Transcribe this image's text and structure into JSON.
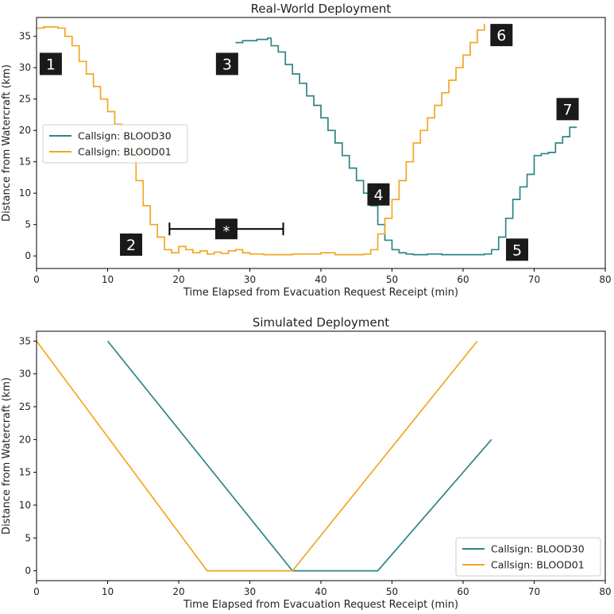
{
  "colors": {
    "blood30": "#2e8486",
    "blood01": "#f2a623"
  },
  "chart_data": [
    {
      "type": "line",
      "title": "Real-World Deployment",
      "xlabel": "Time Elapsed from Evacuation Request Receipt (min)",
      "ylabel": "Distance from Watercraft (km)",
      "xlim": [
        0,
        80
      ],
      "ylim": [
        -2,
        38
      ],
      "xticks": [
        0,
        10,
        20,
        30,
        40,
        50,
        60,
        70,
        80
      ],
      "yticks": [
        0,
        5,
        10,
        15,
        20,
        25,
        30,
        35
      ],
      "grid": false,
      "legend": "center-left",
      "series": [
        {
          "name": "Callsign: BLOOD30",
          "label": "Callsign: BLOOD30",
          "color": "#2e8486",
          "step": true,
          "x": [
            28,
            29,
            31,
            32.5,
            33,
            34,
            35,
            36,
            37,
            38,
            39,
            40,
            41,
            42,
            43,
            44,
            45,
            46,
            47,
            48,
            49,
            50,
            51,
            52,
            53,
            55,
            57,
            59,
            61,
            63,
            64,
            65,
            66,
            67,
            68,
            69,
            70,
            71,
            72,
            73,
            74,
            75,
            76
          ],
          "y": [
            34,
            34.3,
            34.5,
            34.7,
            33.5,
            32.5,
            30.5,
            29,
            27.5,
            25.5,
            24,
            22,
            20,
            18,
            16,
            14,
            12,
            10,
            8,
            5,
            2.5,
            1,
            0.5,
            0.3,
            0.2,
            0.3,
            0.2,
            0.2,
            0.2,
            0.3,
            1,
            3,
            6,
            9,
            11,
            13,
            16,
            16.3,
            16.5,
            18,
            19,
            20.5,
            20.5
          ]
        },
        {
          "name": "Callsign: BLOOD01",
          "label": "Callsign: BLOOD01",
          "color": "#f2a623",
          "step": true,
          "x": [
            0,
            1,
            3,
            4,
            5,
            6,
            7,
            8,
            9,
            10,
            11,
            12,
            13,
            14,
            15,
            16,
            17,
            18,
            19,
            20,
            21,
            22,
            23,
            24,
            25,
            26,
            27,
            28,
            29,
            30,
            32,
            34,
            36,
            38,
            40,
            42,
            44,
            46,
            47,
            48,
            49,
            50,
            51,
            52,
            53,
            54,
            55,
            56,
            57,
            58,
            59,
            60,
            61,
            62,
            63
          ],
          "y": [
            36.3,
            36.5,
            36.3,
            35,
            33.5,
            31,
            29,
            27,
            25,
            23,
            21,
            19,
            16,
            12,
            8,
            5,
            3,
            1,
            0.5,
            1.5,
            1,
            0.5,
            0.8,
            0.3,
            0.6,
            0.4,
            0.8,
            1,
            0.5,
            0.3,
            0.2,
            0.2,
            0.3,
            0.3,
            0.5,
            0.2,
            0.2,
            0.3,
            1,
            3.5,
            6,
            9,
            12,
            15,
            18,
            20,
            22,
            24,
            26,
            28,
            30,
            32,
            34,
            36,
            37
          ]
        }
      ],
      "annotations": [
        {
          "text": "1",
          "x": 2,
          "y": 30.6
        },
        {
          "text": "2",
          "x": 13.3,
          "y": 1.8
        },
        {
          "text": "3",
          "x": 26.8,
          "y": 30.6
        },
        {
          "text": "4",
          "x": 48.1,
          "y": 9.8
        },
        {
          "text": "5",
          "x": 67.6,
          "y": 1.0
        },
        {
          "text": "6",
          "x": 65.4,
          "y": 35.2
        },
        {
          "text": "7",
          "x": 74.7,
          "y": 23.4
        }
      ],
      "interval": {
        "label": "*",
        "x_start": 18.7,
        "x_end": 34.7,
        "y": 4.3
      }
    },
    {
      "type": "line",
      "title": "Simulated Deployment",
      "xlabel": "Time Elapsed from Evacuation Request Receipt (min)",
      "ylabel": "Distance from Watercraft (km)",
      "xlim": [
        0,
        80
      ],
      "ylim": [
        -1.5,
        36.5
      ],
      "xticks": [
        0,
        10,
        20,
        30,
        40,
        50,
        60,
        70,
        80
      ],
      "yticks": [
        0,
        5,
        10,
        15,
        20,
        25,
        30,
        35
      ],
      "grid": false,
      "legend": "bottom-right",
      "series": [
        {
          "name": "Callsign: BLOOD30",
          "label": "Callsign: BLOOD30",
          "color": "#2e8486",
          "step": false,
          "x": [
            10,
            36,
            48,
            64
          ],
          "y": [
            35,
            0,
            0,
            20
          ]
        },
        {
          "name": "Callsign: BLOOD01",
          "label": "Callsign: BLOOD01",
          "color": "#f2a623",
          "step": false,
          "x": [
            0,
            24,
            36,
            62
          ],
          "y": [
            35,
            0,
            0,
            35
          ]
        }
      ],
      "annotations": []
    }
  ]
}
